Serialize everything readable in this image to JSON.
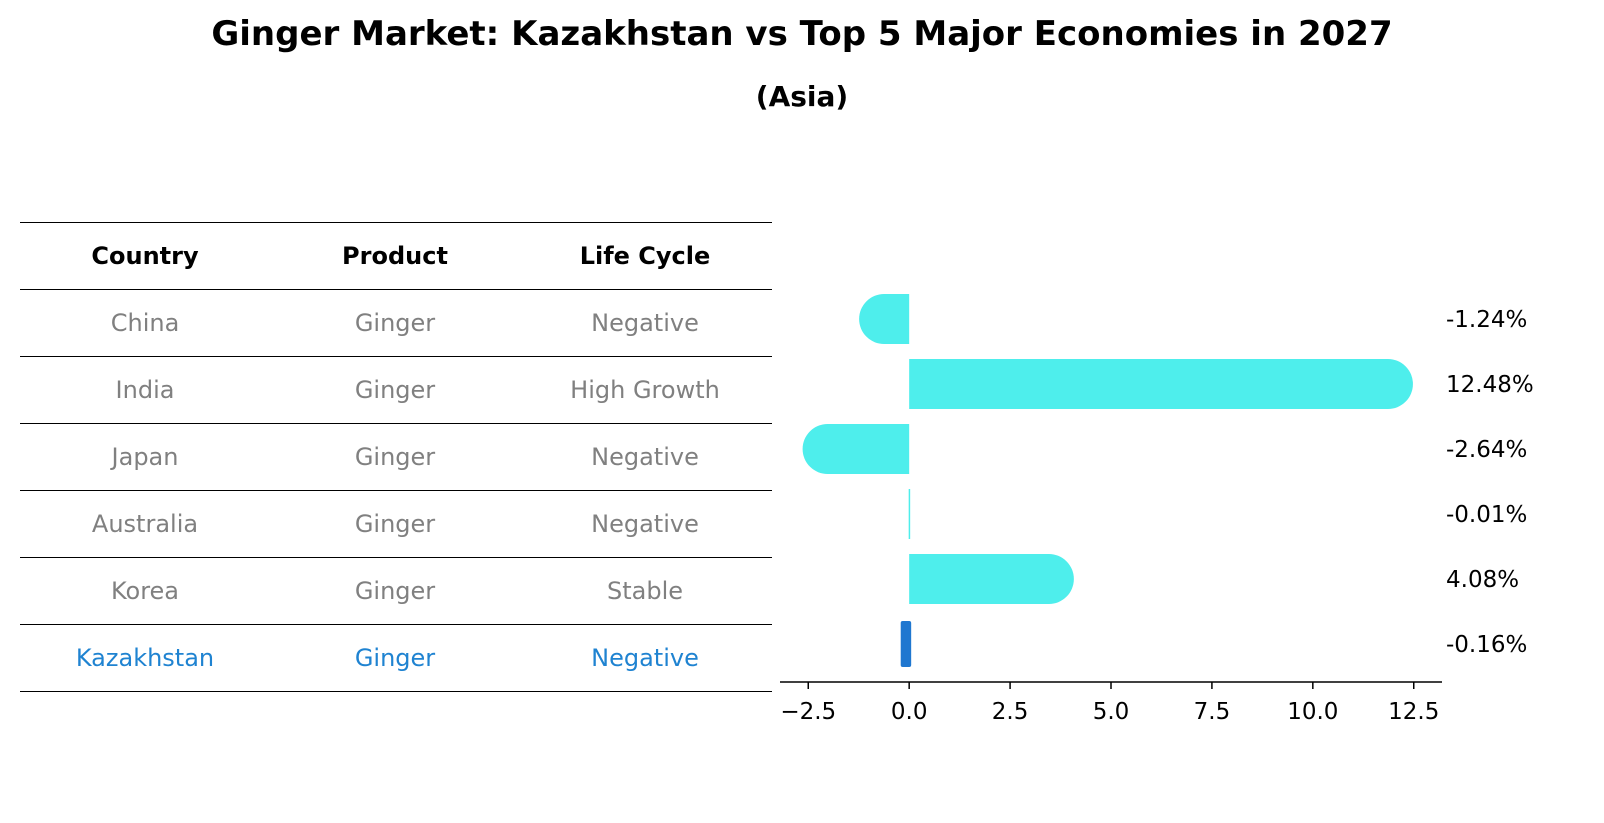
{
  "chart_data": {
    "type": "bar",
    "orientation": "horizontal",
    "title": "Ginger Market: Kazakhstan vs Top 5 Major Economies in 2027",
    "subtitle": "(Asia)",
    "categories": [
      "China",
      "India",
      "Japan",
      "Australia",
      "Korea",
      "Kazakhstan"
    ],
    "values": [
      -1.24,
      12.48,
      -2.64,
      -0.01,
      4.08,
      -0.16
    ],
    "value_labels": [
      "-1.24%",
      "12.48%",
      "-2.64%",
      "-0.01%",
      "4.08%",
      "-0.16%"
    ],
    "highlight": "Kazakhstan",
    "xlim": [
      -3.2,
      13.2
    ],
    "xticks": [
      -2.5,
      0.0,
      2.5,
      5.0,
      7.5,
      10.0,
      12.5
    ],
    "xtick_labels": [
      "−2.5",
      "0.0",
      "2.5",
      "5.0",
      "7.5",
      "10.0",
      "12.5"
    ],
    "xlabel": "",
    "ylabel": "",
    "colors": {
      "bar": "#4eeeec",
      "highlight": "#1f77d0"
    }
  },
  "table": {
    "headers": [
      "Country",
      "Product",
      "Life Cycle"
    ],
    "rows": [
      [
        "China",
        "Ginger",
        "Negative"
      ],
      [
        "India",
        "Ginger",
        "High Growth"
      ],
      [
        "Japan",
        "Ginger",
        "Negative"
      ],
      [
        "Australia",
        "Ginger",
        "Negative"
      ],
      [
        "Korea",
        "Ginger",
        "Stable"
      ],
      [
        "Kazakhstan",
        "Ginger",
        "Negative"
      ]
    ]
  }
}
